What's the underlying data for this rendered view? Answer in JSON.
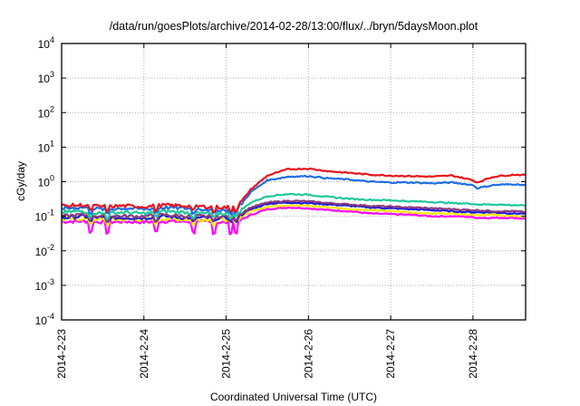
{
  "chart_data": {
    "type": "line",
    "title": "/data/run/goesPlots/archive/2014-02-28/13:00/flux/../bryn/5daysMoon.plot",
    "xlabel": "Coordinated Universal Time (UTC)",
    "ylabel": "cGy/day",
    "yscale": "log",
    "ylim_exponents": [
      -4,
      4
    ],
    "y_tick_base": "10",
    "y_tick_exponents": [
      "4",
      "3",
      "2",
      "1",
      "0",
      "-1",
      "-2",
      "-3",
      "-4"
    ],
    "x_unit": "days since 2014-2-23 00:00 UTC",
    "xlim": [
      0,
      5.64
    ],
    "x_tick_labels": [
      "2014-2-23",
      "2014-2-24",
      "2014-2-25",
      "2014-2-26",
      "2014-2-27",
      "2014-2-28"
    ],
    "x_tick_values": [
      0,
      1,
      2,
      3,
      4,
      5
    ],
    "grid": true,
    "legend": "none",
    "x": [
      0,
      0.25,
      0.5,
      0.75,
      1.0,
      1.25,
      1.5,
      1.75,
      2.0,
      2.15,
      2.3,
      2.5,
      2.75,
      3.0,
      3.25,
      3.5,
      3.75,
      4.0,
      4.25,
      4.5,
      4.75,
      5.0,
      5.05,
      5.25,
      5.5,
      5.64
    ],
    "series": [
      {
        "name": "series-red",
        "color": "#e8141c",
        "values": [
          0.2,
          0.21,
          0.19,
          0.2,
          0.19,
          0.21,
          0.2,
          0.19,
          0.18,
          0.21,
          0.6,
          1.5,
          2.3,
          2.4,
          2.0,
          1.8,
          1.6,
          1.5,
          1.45,
          1.4,
          1.5,
          1.1,
          0.95,
          1.4,
          1.6,
          1.55
        ]
      },
      {
        "name": "series-blue",
        "color": "#1f6fe6",
        "values": [
          0.17,
          0.18,
          0.16,
          0.17,
          0.16,
          0.18,
          0.17,
          0.16,
          0.15,
          0.18,
          0.5,
          1.1,
          1.4,
          1.45,
          1.25,
          1.15,
          1.0,
          0.95,
          0.95,
          0.9,
          0.95,
          0.8,
          0.65,
          0.8,
          0.85,
          0.8
        ]
      },
      {
        "name": "series-teal",
        "color": "#1fc79a",
        "values": [
          0.13,
          0.14,
          0.12,
          0.13,
          0.12,
          0.14,
          0.13,
          0.12,
          0.12,
          0.13,
          0.25,
          0.38,
          0.44,
          0.42,
          0.36,
          0.32,
          0.3,
          0.29,
          0.27,
          0.26,
          0.24,
          0.23,
          0.22,
          0.22,
          0.21,
          0.2
        ]
      },
      {
        "name": "series-purple",
        "color": "#8a3a7e",
        "values": [
          0.1,
          0.11,
          0.1,
          0.1,
          0.1,
          0.11,
          0.1,
          0.1,
          0.1,
          0.11,
          0.18,
          0.25,
          0.28,
          0.27,
          0.24,
          0.22,
          0.2,
          0.19,
          0.18,
          0.17,
          0.16,
          0.15,
          0.15,
          0.14,
          0.14,
          0.13
        ]
      },
      {
        "name": "series-darkblue",
        "color": "#1a1adc",
        "values": [
          0.09,
          0.1,
          0.09,
          0.09,
          0.09,
          0.1,
          0.09,
          0.09,
          0.09,
          0.1,
          0.16,
          0.23,
          0.25,
          0.24,
          0.22,
          0.2,
          0.18,
          0.17,
          0.16,
          0.15,
          0.14,
          0.13,
          0.13,
          0.13,
          0.12,
          0.12
        ]
      },
      {
        "name": "series-yellow",
        "color": "#ffe600",
        "values": [
          0.08,
          0.085,
          0.08,
          0.08,
          0.08,
          0.085,
          0.08,
          0.08,
          0.08,
          0.085,
          0.14,
          0.19,
          0.21,
          0.2,
          0.18,
          0.16,
          0.15,
          0.14,
          0.13,
          0.12,
          0.12,
          0.11,
          0.11,
          0.11,
          0.1,
          0.1
        ]
      },
      {
        "name": "series-magenta",
        "color": "#ff00ff",
        "values": [
          0.07,
          0.072,
          0.068,
          0.07,
          0.068,
          0.072,
          0.07,
          0.068,
          0.066,
          0.07,
          0.11,
          0.16,
          0.18,
          0.17,
          0.15,
          0.14,
          0.12,
          0.115,
          0.11,
          0.1,
          0.1,
          0.095,
          0.09,
          0.09,
          0.09,
          0.085
        ]
      }
    ]
  }
}
